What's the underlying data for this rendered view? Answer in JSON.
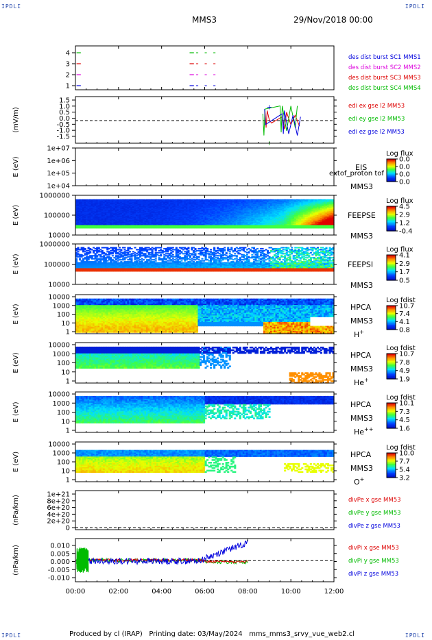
{
  "corners": {
    "tl": "IPDLI",
    "tr": "IPDLI",
    "bl": "IPDLI",
    "br": "IPDLI"
  },
  "header": {
    "spacecraft": "MMS3",
    "date": "29/Nov/2018 00:00"
  },
  "footer": {
    "text": "Produced by cl (IRAP)   Printing date: 03/May/2024   mms_mms3_srvy_vue_web2.cl"
  },
  "xaxis": {
    "ticks": [
      "00:00",
      "02:00",
      "04:00",
      "06:00",
      "08:00",
      "10:00",
      "12:00"
    ]
  },
  "colors": {
    "blue": "#0000dd",
    "red": "#dd0000",
    "green": "#00bb00",
    "magenta": "#dd00dd"
  },
  "chart_data": [
    {
      "type": "line",
      "id": "burst",
      "ylabels": [
        "4",
        "3",
        "2",
        "1"
      ],
      "legend": [
        {
          "text": "des dist burst SC1 MMS1",
          "color": "#0000dd"
        },
        {
          "text": "des dist burst SC2 MMS2",
          "color": "#dd00dd"
        },
        {
          "text": "des dist burst SC3 MMS3",
          "color": "#dd0000"
        },
        {
          "text": "des dist burst SC4 MMS4",
          "color": "#00bb00"
        }
      ]
    },
    {
      "type": "line",
      "id": "edi",
      "ylabel": "(mV/m)",
      "yticks": [
        "1.5",
        "1.0",
        "0.5",
        "0.0",
        "-0.5",
        "-1.0",
        "-1.5"
      ],
      "ylim": [
        -1.5,
        1.5
      ],
      "legend": [
        {
          "text": "edi ex gse l2 MM53",
          "color": "#dd0000"
        },
        {
          "text": "edi ey gse l2 MM53",
          "color": "#00bb00"
        },
        {
          "text": "edi ez gse l2 MM53",
          "color": "#0000dd"
        }
      ]
    },
    {
      "type": "heatmap",
      "id": "eis",
      "ylabel": "E (eV)",
      "yticks": [
        "1e+07",
        "1e+06",
        "1e+05",
        "1e+04"
      ],
      "labels": [
        "EIS",
        "MMS3"
      ],
      "overlay": "extof_proton tof",
      "cbar_title": "Log flux",
      "cbar_ticks": [
        "0.0",
        "0.0",
        "0.0",
        "0.0"
      ]
    },
    {
      "type": "heatmap",
      "id": "feepse",
      "ylabel": "E (eV)",
      "yticks": [
        "1000000",
        "100000",
        "10000"
      ],
      "labels": [
        "FEEPSE",
        "MMS3"
      ],
      "cbar_title": "Log flux",
      "cbar_ticks": [
        "4.5",
        "2.9",
        "1.2",
        "-0.4"
      ]
    },
    {
      "type": "heatmap",
      "id": "feepsi",
      "ylabel": "E (eV)",
      "yticks": [
        "1000000",
        "100000",
        "10000"
      ],
      "labels": [
        "FEEPSI",
        "MMS3"
      ],
      "cbar_title": "Log flux",
      "cbar_ticks": [
        "4.1",
        "2.9",
        "1.7",
        "0.5"
      ]
    },
    {
      "type": "heatmap",
      "id": "hpca_h",
      "ylabel": "E (eV)",
      "yticks": [
        "10000",
        "1000",
        "100",
        "10",
        "1"
      ],
      "labels": [
        "HPCA",
        "MMS3",
        "H+"
      ],
      "cbar_title": "Log fdist",
      "cbar_ticks": [
        "10.7",
        "7.4",
        "4.1",
        "0.8"
      ]
    },
    {
      "type": "heatmap",
      "id": "hpca_he",
      "ylabel": "E (eV)",
      "yticks": [
        "10000",
        "1000",
        "100",
        "10",
        "1"
      ],
      "labels": [
        "HPCA",
        "MMS3",
        "He+"
      ],
      "cbar_title": "Log fdist",
      "cbar_ticks": [
        "10.7",
        "7.8",
        "4.9",
        "1.9"
      ]
    },
    {
      "type": "heatmap",
      "id": "hpca_hepp",
      "ylabel": "E (eV)",
      "yticks": [
        "10000",
        "1000",
        "100",
        "10",
        "1"
      ],
      "labels": [
        "HPCA",
        "MMS3",
        "He++"
      ],
      "cbar_title": "Log fdist",
      "cbar_ticks": [
        "10.1",
        "7.3",
        "4.5",
        "1.6"
      ]
    },
    {
      "type": "heatmap",
      "id": "hpca_o",
      "ylabel": "E (eV)",
      "yticks": [
        "10000",
        "1000",
        "100",
        "10",
        "1"
      ],
      "labels": [
        "HPCA",
        "MMS3",
        "O+"
      ],
      "cbar_title": "Log fdist",
      "cbar_ticks": [
        "10.0",
        "7.7",
        "5.4",
        "3.2"
      ]
    },
    {
      "type": "line",
      "id": "divpe",
      "ylabel": "(nPa/km)",
      "yticks": [
        "1e+21",
        "8e+20",
        "6e+20",
        "4e+20",
        "2e+20",
        "0"
      ],
      "legend": [
        {
          "text": "divPe x gse MM53",
          "color": "#dd0000"
        },
        {
          "text": "divPe y gse MM53",
          "color": "#00bb00"
        },
        {
          "text": "divPe z gse MM53",
          "color": "#0000dd"
        }
      ]
    },
    {
      "type": "line",
      "id": "divpi",
      "ylabel": "(nPa/km)",
      "yticks": [
        "0.010",
        "0.005",
        "0.000",
        "-0.005",
        "-0.010"
      ],
      "ylim": [
        -0.012,
        0.012
      ],
      "legend": [
        {
          "text": "divPi x gse MM53",
          "color": "#dd0000"
        },
        {
          "text": "divPi y gse MM53",
          "color": "#00bb00"
        },
        {
          "text": "divPi z gse MM53",
          "color": "#0000dd"
        }
      ]
    }
  ]
}
